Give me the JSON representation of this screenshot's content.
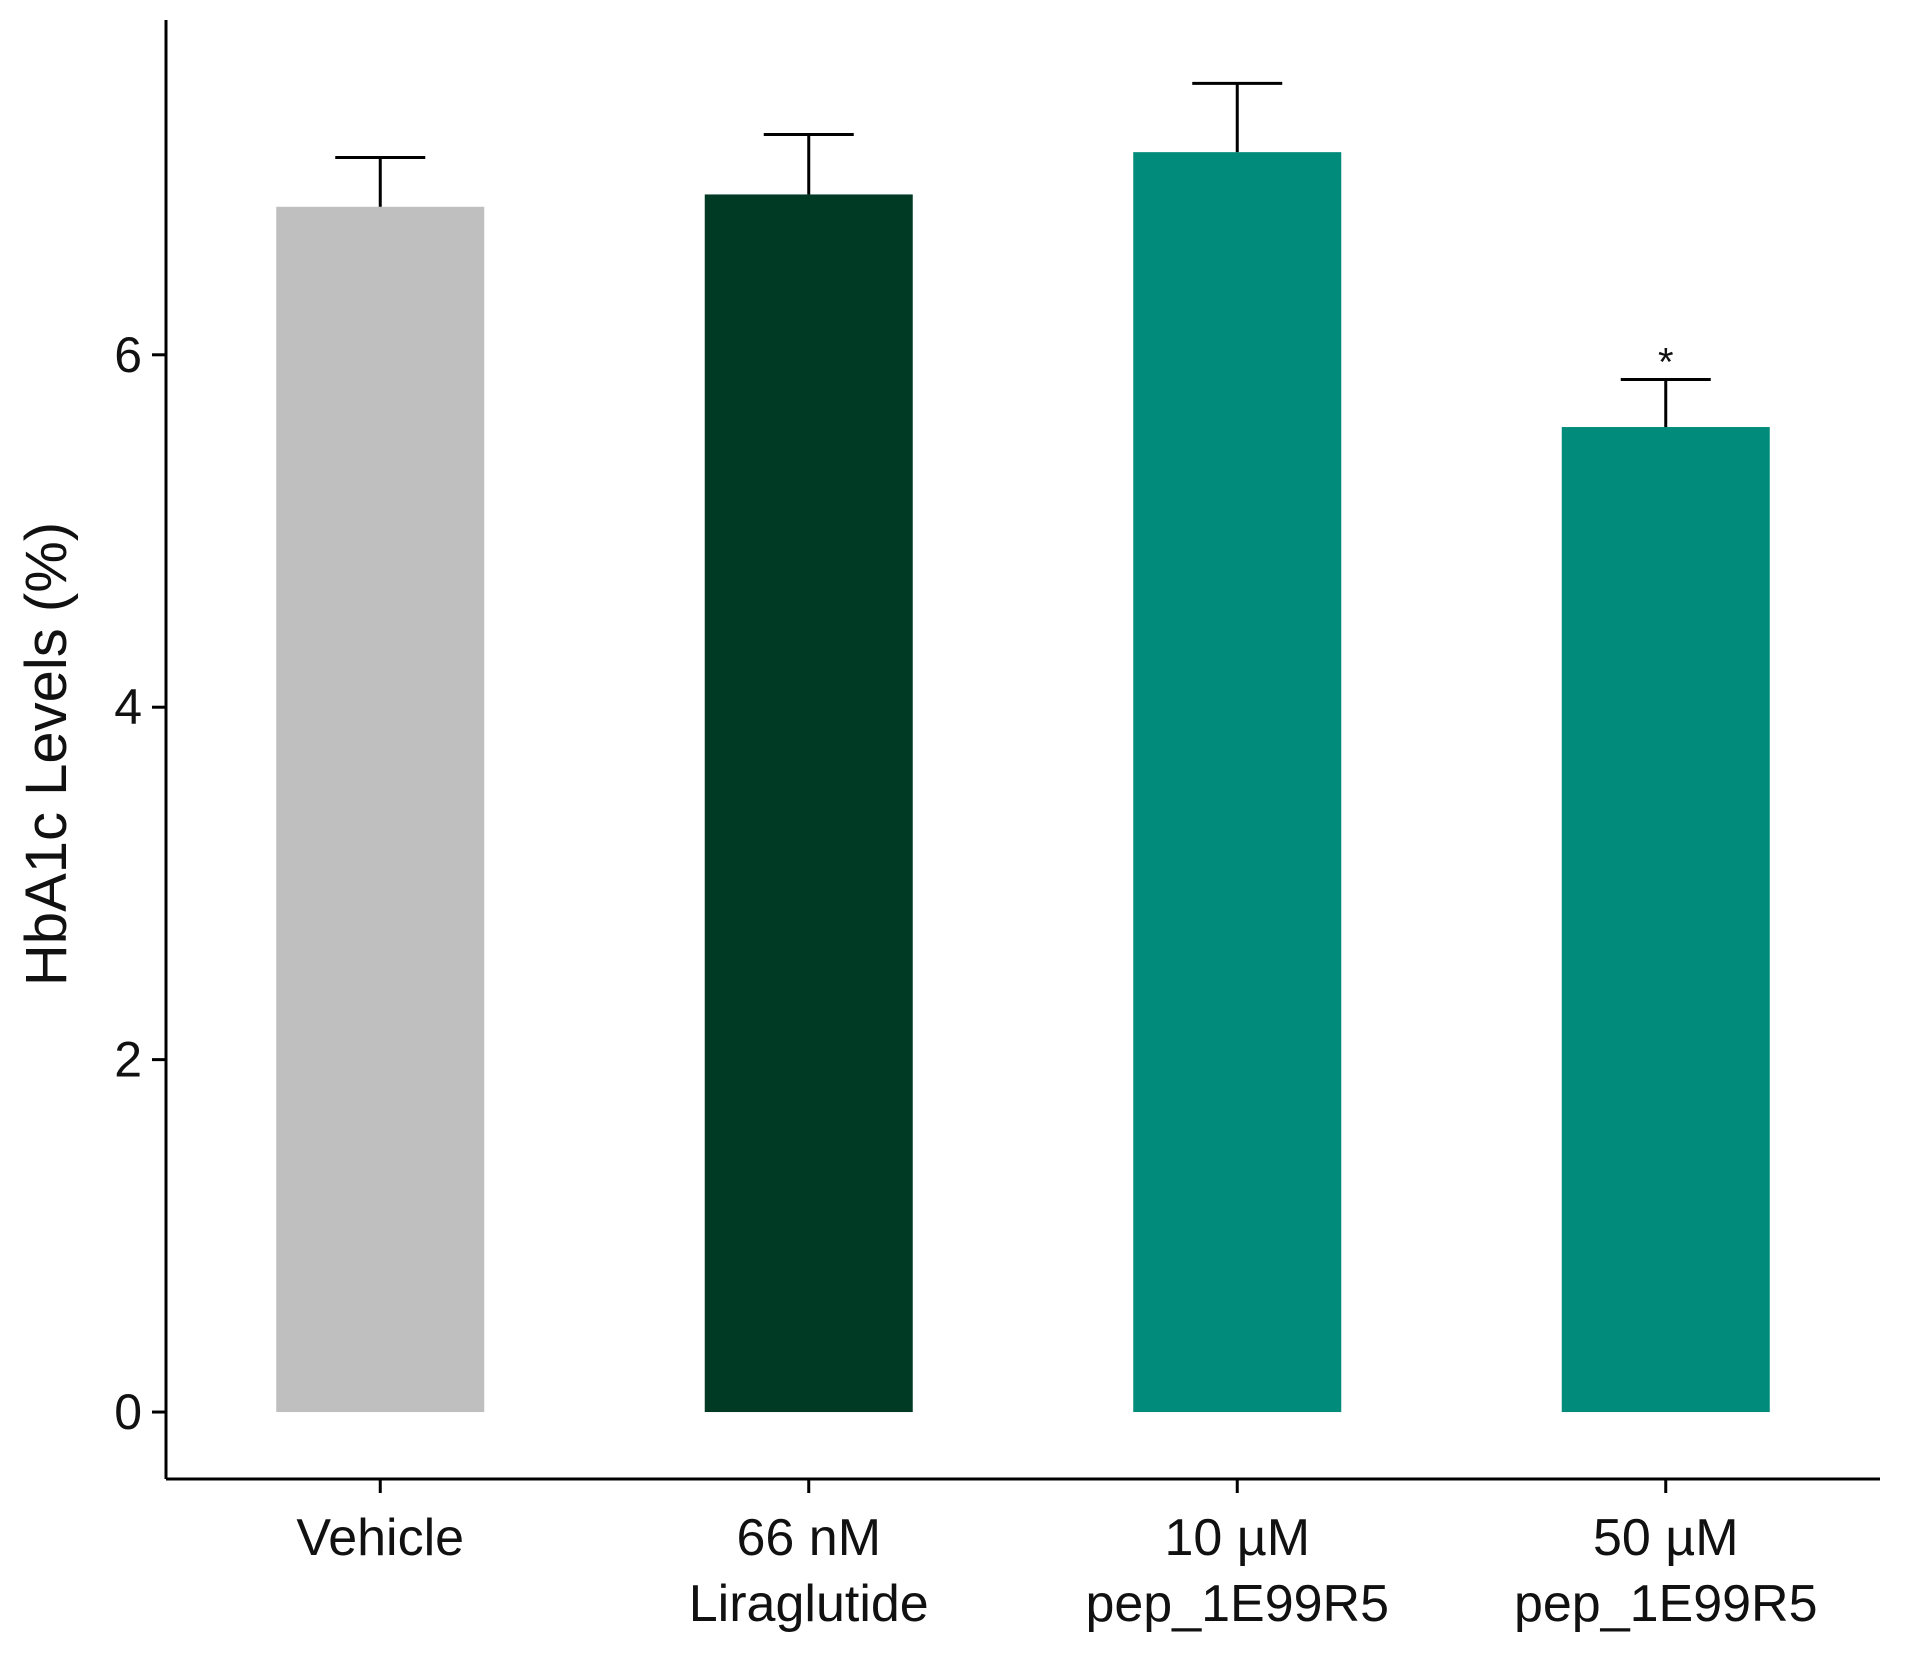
{
  "chart_data": {
    "type": "bar",
    "title": "",
    "xlabel": "",
    "ylabel": "HbA1c Levels (%)",
    "ylim": [
      -0.38,
      7.9
    ],
    "yticks": [
      0,
      2,
      4,
      6
    ],
    "ytick_labels": [
      "0",
      "2",
      "4",
      "6"
    ],
    "grid": false,
    "legend": "none",
    "categories": [
      [
        "Vehicle"
      ],
      [
        "66 nM",
        "Liraglutide"
      ],
      [
        "10 µM",
        "pep_1E99R5"
      ],
      [
        "50 µM",
        "pep_1E99R5"
      ]
    ],
    "values": [
      6.84,
      6.91,
      7.15,
      5.59
    ],
    "errors": [
      0.28,
      0.34,
      0.39,
      0.27
    ],
    "annotations": [
      "",
      "",
      "",
      "*"
    ],
    "colors": [
      "#bfbfbf",
      "#003924",
      "#008b7a",
      "#008b7a"
    ]
  }
}
